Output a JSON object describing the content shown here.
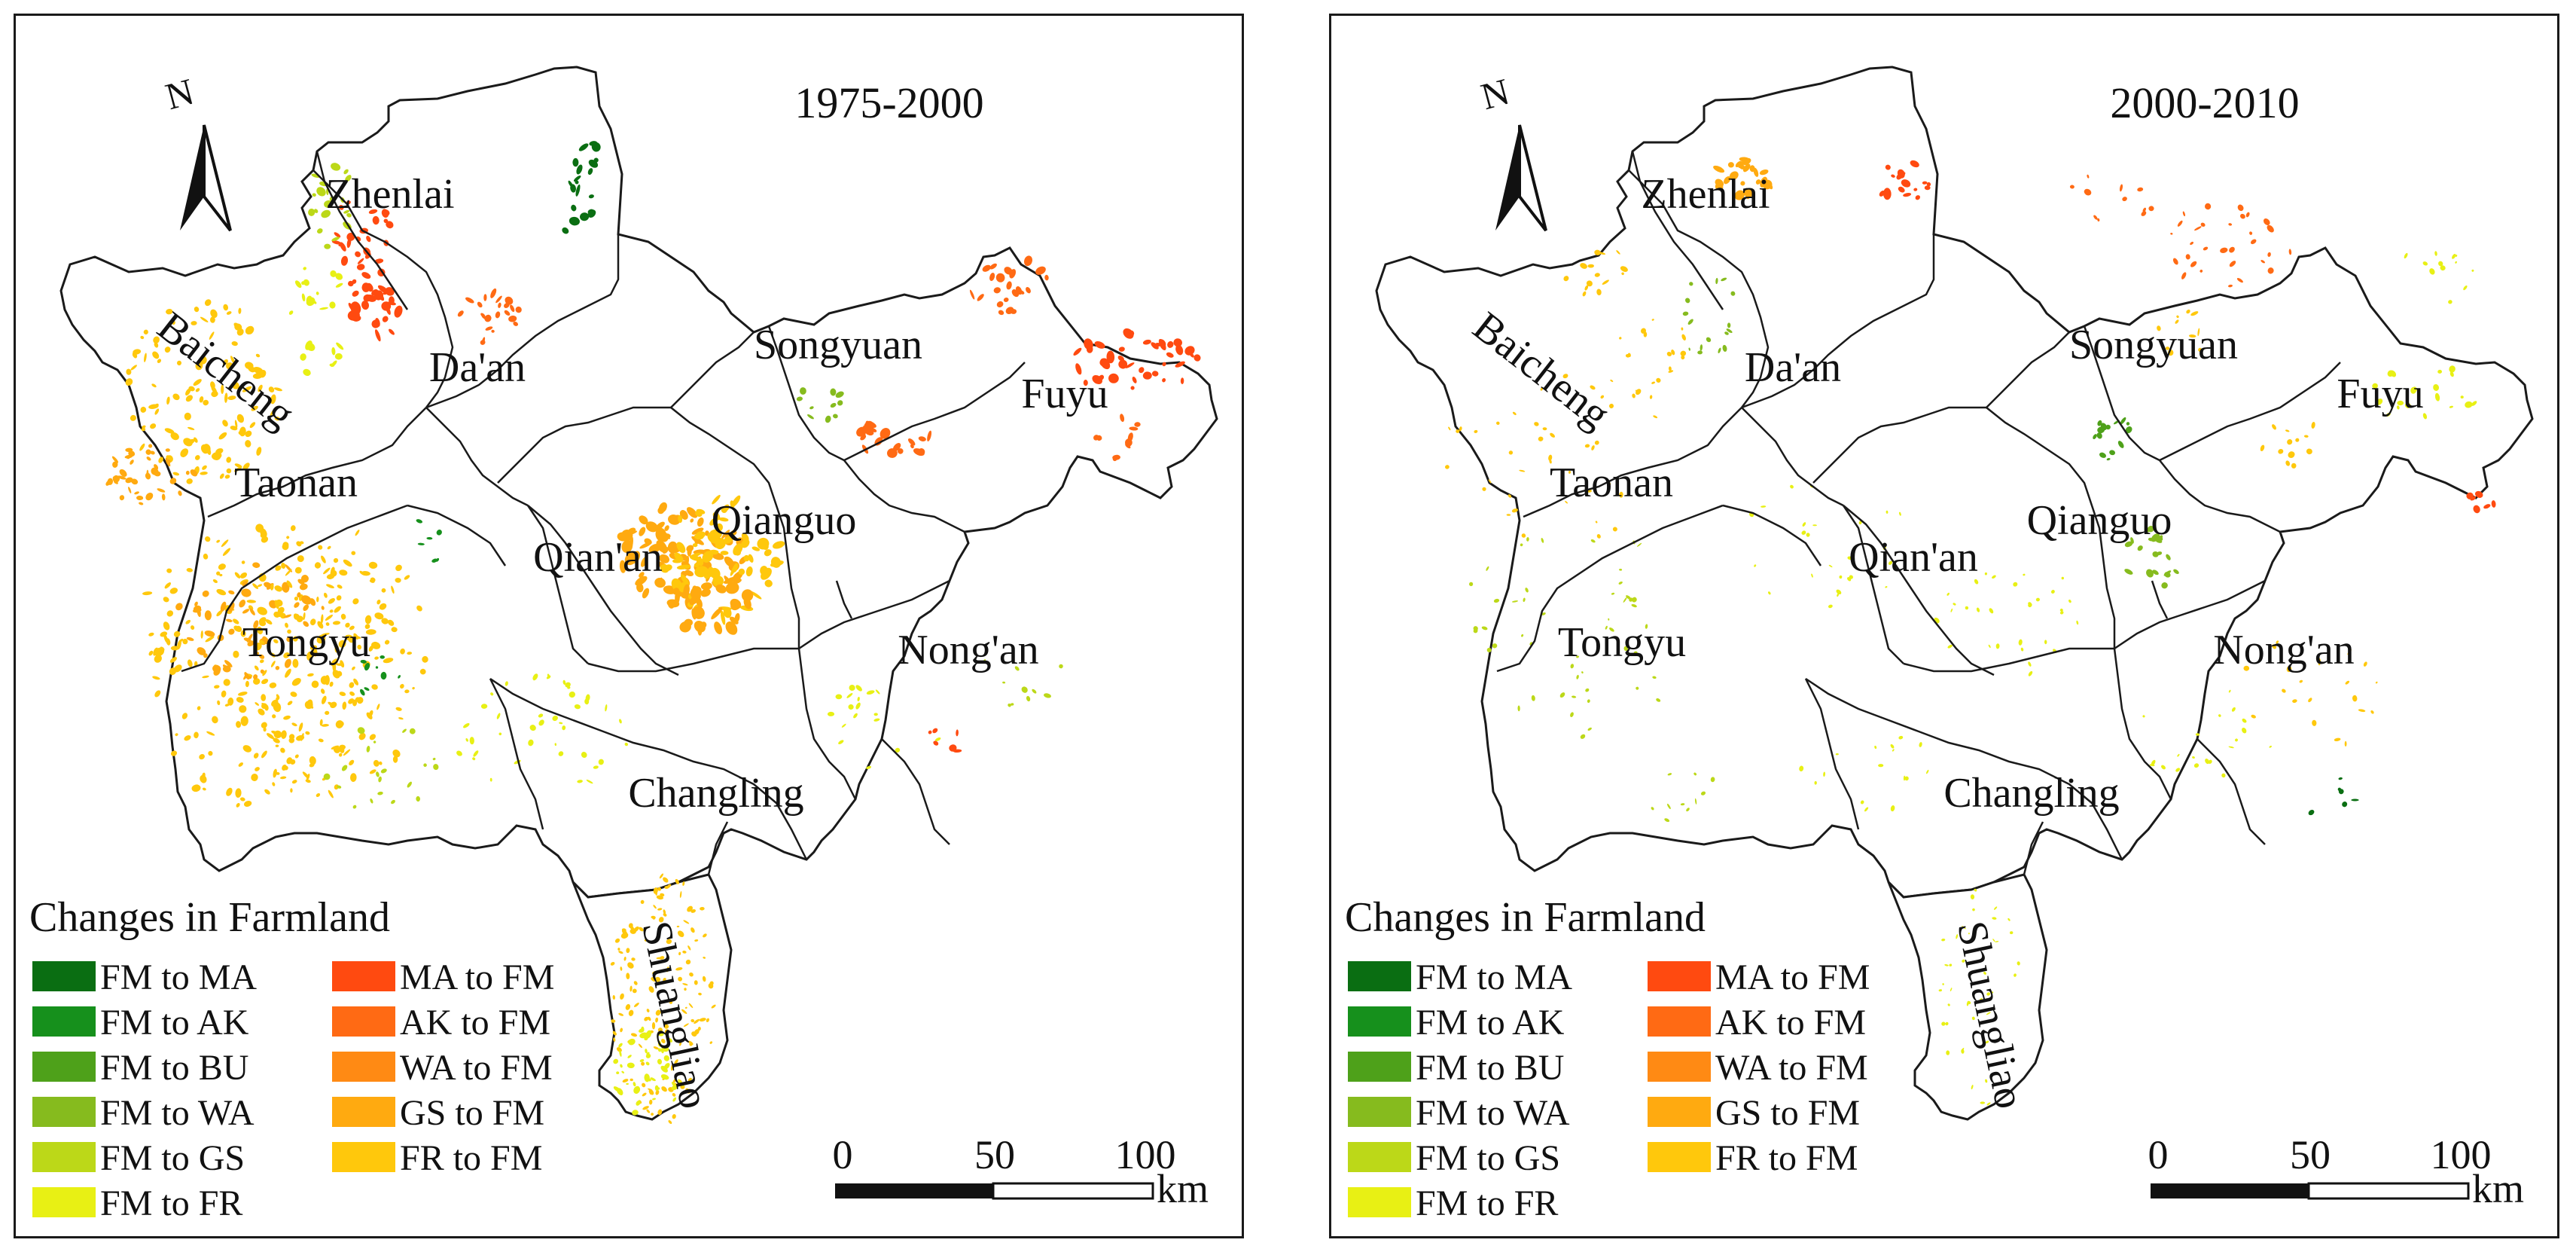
{
  "panels": [
    {
      "id": "left",
      "period": "1975-2000",
      "variant": "1975",
      "regions": [
        "Zhenlai",
        "Baicheng",
        "Da'an",
        "Songyuan",
        "Fuyu",
        "Taonan",
        "Qian'an",
        "Qianguo",
        "Tongyu",
        "Nong'an",
        "Changling",
        "Shuangliao"
      ]
    },
    {
      "id": "right",
      "period": "2000-2010",
      "variant": "2000",
      "regions": [
        "Zhenlai",
        "Baicheng",
        "Da'an",
        "Songyuan",
        "Fuyu",
        "Taonan",
        "Qian'an",
        "Qianguo",
        "Tongyu",
        "Nong'an",
        "Changling",
        "Shuangliao"
      ]
    }
  ],
  "north_label": "N",
  "legend": {
    "title": "Changes in Farmland",
    "left_column": [
      {
        "label": "FM to MA",
        "color": "#0a6e12"
      },
      {
        "label": "FM to AK",
        "color": "#16901c"
      },
      {
        "label": "FM to BU",
        "color": "#4ea11a"
      },
      {
        "label": "FM to WA",
        "color": "#86bb1e"
      },
      {
        "label": "FM to GS",
        "color": "#bcd818"
      },
      {
        "label": "FM to FR",
        "color": "#e8f014"
      }
    ],
    "right_column": [
      {
        "label": "MA to FM",
        "color": "#ff4a10"
      },
      {
        "label": "AK to FM",
        "color": "#ff6a14"
      },
      {
        "label": "WA to FM",
        "color": "#ff8a14"
      },
      {
        "label": "GS to FM",
        "color": "#ffaa10"
      },
      {
        "label": "FR to FM",
        "color": "#ffc80c"
      }
    ]
  },
  "scale_bar": {
    "ticks": [
      "0",
      "50",
      "100"
    ],
    "unit": "km"
  }
}
